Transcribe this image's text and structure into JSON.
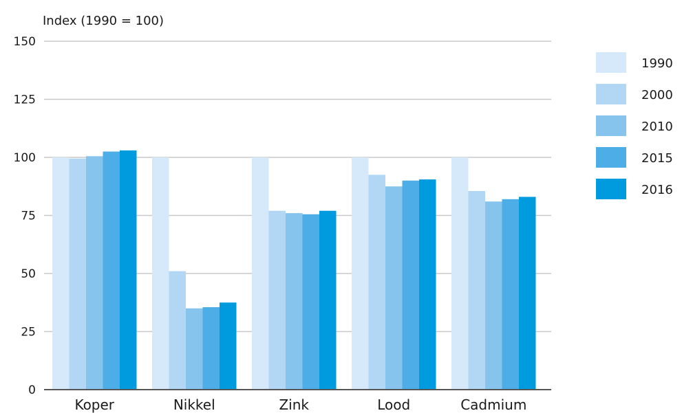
{
  "chart_data": {
    "type": "bar",
    "title": "",
    "xlabel": "",
    "ylabel": "Index (1990 = 100)",
    "ylim": [
      0,
      150
    ],
    "yticks": [
      0,
      25,
      50,
      75,
      100,
      125,
      150
    ],
    "grid": true,
    "legend_position": "right",
    "categories": [
      "Koper",
      "Nikkel",
      "Zink",
      "Lood",
      "Cadmium"
    ],
    "series": [
      {
        "name": "1990",
        "color": "#d6e9fa",
        "values": [
          100,
          100,
          100,
          100,
          100
        ]
      },
      {
        "name": "2000",
        "color": "#b2d7f5",
        "values": [
          99.5,
          51,
          77,
          92.5,
          85.5
        ]
      },
      {
        "name": "2010",
        "color": "#86c4ee",
        "values": [
          100.5,
          35,
          76,
          87.5,
          81
        ]
      },
      {
        "name": "2015",
        "color": "#4dade6",
        "values": [
          102.5,
          35.5,
          75.5,
          90,
          82
        ]
      },
      {
        "name": "2016",
        "color": "#009bdf",
        "values": [
          103,
          37.5,
          77,
          90.5,
          83
        ]
      }
    ]
  }
}
